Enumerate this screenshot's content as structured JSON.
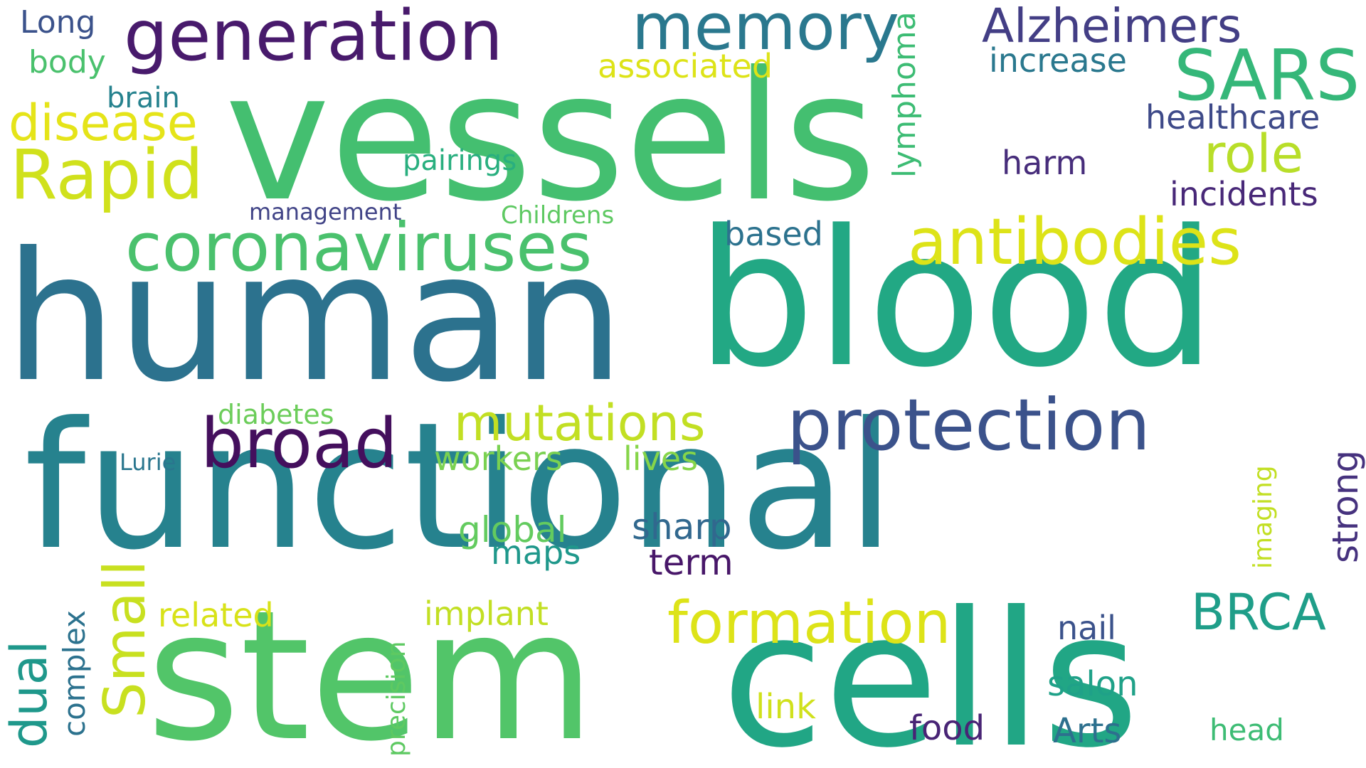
{
  "words": {
    "functional": {
      "text": "functional",
      "color": "#26828e"
    },
    "vessels": {
      "text": "vessels",
      "color": "#44bf70"
    },
    "human": {
      "text": "human",
      "color": "#2c728e"
    },
    "blood": {
      "text": "blood",
      "color": "#22a884"
    },
    "stem": {
      "text": "stem",
      "color": "#52c569"
    },
    "cells": {
      "text": "cells",
      "color": "#21a685"
    },
    "generation": {
      "text": "generation",
      "color": "#481a6c"
    },
    "memory": {
      "text": "memory",
      "color": "#2a788e"
    },
    "alzheimers": {
      "text": "Alzheimers",
      "color": "#433e85"
    },
    "sars": {
      "text": "SARS",
      "color": "#35b779"
    },
    "coronaviruses": {
      "text": "coronaviruses",
      "color": "#4ac16d"
    },
    "antibodies": {
      "text": "antibodies",
      "color": "#dde318"
    },
    "protection": {
      "text": "protection",
      "color": "#3b528b"
    },
    "broad": {
      "text": "broad",
      "color": "#440f5d"
    },
    "rapid": {
      "text": "Rapid",
      "color": "#d0e11c"
    },
    "disease": {
      "text": "disease",
      "color": "#e5e419"
    },
    "role": {
      "text": "role",
      "color": "#b8de29"
    },
    "mutations": {
      "text": "mutations",
      "color": "#c2df23"
    },
    "formation": {
      "text": "formation",
      "color": "#dde318"
    },
    "small": {
      "text": "Small",
      "color": "#c8e020"
    },
    "brca": {
      "text": "BRCA",
      "color": "#1f9e89"
    },
    "long": {
      "text": "Long",
      "color": "#3b528b"
    },
    "body": {
      "text": "body",
      "color": "#4ac16d"
    },
    "brain": {
      "text": "brain",
      "color": "#26828e"
    },
    "associated": {
      "text": "associated",
      "color": "#dde318"
    },
    "increase": {
      "text": "increase",
      "color": "#2a788e"
    },
    "healthcare": {
      "text": "healthcare",
      "color": "#3e4a89"
    },
    "harm": {
      "text": "harm",
      "color": "#472d7b"
    },
    "incidents": {
      "text": "incidents",
      "color": "#482878"
    },
    "pairings": {
      "text": "pairings",
      "color": "#29af7f"
    },
    "management": {
      "text": "management",
      "color": "#414487"
    },
    "childrens": {
      "text": "Childrens",
      "color": "#5ec962"
    },
    "based": {
      "text": "based",
      "color": "#2c728e"
    },
    "lymphoma": {
      "text": "lymphoma",
      "color": "#3dbc74"
    },
    "diabetes": {
      "text": "diabetes",
      "color": "#6ccd5a"
    },
    "lurie": {
      "text": "Lurie",
      "color": "#2a768e"
    },
    "workers": {
      "text": "workers",
      "color": "#7ad151"
    },
    "lives": {
      "text": "lives",
      "color": "#86d549"
    },
    "global": {
      "text": "global",
      "color": "#63cb5f"
    },
    "maps": {
      "text": "maps",
      "color": "#1f988b"
    },
    "sharp": {
      "text": "sharp",
      "color": "#31688e"
    },
    "term": {
      "text": "term",
      "color": "#481769"
    },
    "strong": {
      "text": "strong",
      "color": "#46327e"
    },
    "imaging": {
      "text": "imaging",
      "color": "#c2df23"
    },
    "dual": {
      "text": "dual",
      "color": "#1f988b"
    },
    "complex": {
      "text": "complex",
      "color": "#2c728e"
    },
    "related": {
      "text": "related",
      "color": "#d8e219"
    },
    "precision": {
      "text": "precision",
      "color": "#5ec962"
    },
    "implant": {
      "text": "implant",
      "color": "#c2df23"
    },
    "nail": {
      "text": "nail",
      "color": "#3b528b"
    },
    "salon": {
      "text": "salon",
      "color": "#1fa188"
    },
    "link": {
      "text": "link",
      "color": "#d0e11c"
    },
    "food": {
      "text": "food",
      "color": "#482475"
    },
    "arts": {
      "text": "Arts",
      "color": "#2d708e"
    },
    "head": {
      "text": "head",
      "color": "#3dbc74"
    }
  }
}
